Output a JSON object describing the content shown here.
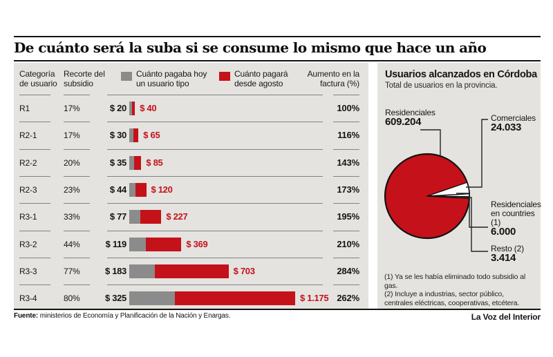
{
  "page": {
    "title": "De cuánto será la suba si se consume lo mismo que hace un año",
    "source_label": "Fuente:",
    "source_text": " ministerios de Economía y Planificación de la Nación y Enargas.",
    "credit": "La Voz del Interior"
  },
  "table_header": {
    "col_category": "Categoría de usuario",
    "col_subsidy": "Recorte del subsidio",
    "legend_today": "Cuánto pagaba hoy un usuario tipo",
    "legend_august": "Cuánto pagará desde agosto",
    "col_increase": "Aumento en la factura (%)"
  },
  "right_panel": {
    "title": "Usuarios alcanzados en Córdoba",
    "subtitle": "Total de usuarios en la provincia.",
    "labels": {
      "residenciales": "Residenciales",
      "comerciales": "Comerciales",
      "countries": "Residenciales en countries (1)",
      "resto": "Resto (2)"
    },
    "footnote1": "(1) Ya se les había eliminado todo subsidio al gas.",
    "footnote2": "(2) Incluye a industrias, sector público, centrales eléctricas, cooperativas, etcétera."
  },
  "colors": {
    "red": "#c5111a",
    "gray": "#8c8b8b",
    "panel_bg": "#e4e3df",
    "line": "#111111",
    "separator": "#818181",
    "white": "#ffffff"
  },
  "chart_data": [
    {
      "type": "bar",
      "title": "De cuánto será la suba si se consume lo mismo que hace un año",
      "categories": [
        "R1",
        "R2-1",
        "R2-2",
        "R2-3",
        "R3-1",
        "R3-2",
        "R3-3",
        "R3-4"
      ],
      "series": [
        {
          "name": "Cuánto pagaba hoy un usuario tipo",
          "values": [
            20,
            30,
            35,
            44,
            77,
            119,
            183,
            325
          ]
        },
        {
          "name": "Cuánto pagará desde agosto",
          "values": [
            40,
            65,
            85,
            120,
            227,
            369,
            703,
            1175
          ]
        }
      ],
      "recorte_subsidio_pct": [
        17,
        17,
        20,
        23,
        33,
        44,
        77,
        80
      ],
      "aumento_factura_pct": [
        100,
        116,
        143,
        173,
        195,
        210,
        284,
        262
      ],
      "xlabel": "",
      "ylabel": "",
      "xlim": [
        0,
        1175
      ],
      "grid": false,
      "legend_position": "top"
    },
    {
      "type": "pie",
      "title": "Usuarios alcanzados en Córdoba",
      "subtitle": "Total de usuarios en la provincia.",
      "labels": [
        "Residenciales",
        "Comerciales",
        "Residenciales en countries (1)",
        "Resto (2)"
      ],
      "values": [
        609204,
        24033,
        6000,
        3414
      ],
      "colors": [
        "#c5111a",
        "#ffffff",
        "#ffffff",
        "#ffffff"
      ]
    }
  ]
}
